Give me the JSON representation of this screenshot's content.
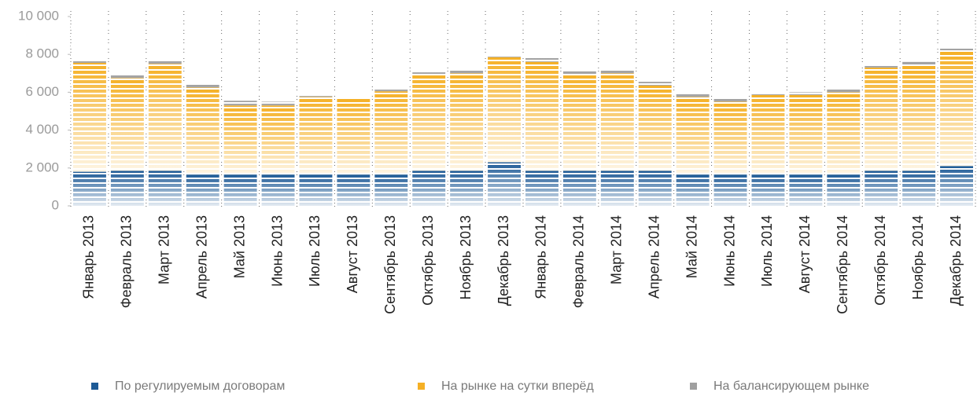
{
  "chart_data": {
    "type": "stacked_bar",
    "categories": [
      "Январь 2013",
      "Февраль 2013",
      "Март 2013",
      "Апрель 2013",
      "Май 2013",
      "Июнь 2013",
      "Июль 2013",
      "Август 2013",
      "Сентябрь 2013",
      "Октябрь 2013",
      "Ноябрь 2013",
      "Декабрь 2013",
      "Январь 2014",
      "Февраль 2014",
      "Март 2014",
      "Апрель 2014",
      "Май 2014",
      "Июнь 2014",
      "Июль 2014",
      "Август 2014",
      "Сентябрь 2014",
      "Октябрь 2014",
      "Ноябрь 2014",
      "Декабрь 2014"
    ],
    "series": [
      {
        "name": "По регулируемым договорам",
        "color": "#1d5a96",
        "values": [
          1800,
          1850,
          1850,
          1650,
          1650,
          1650,
          1650,
          1650,
          1650,
          1850,
          1850,
          2300,
          1850,
          1850,
          1850,
          1850,
          1650,
          1650,
          1650,
          1650,
          1650,
          1850,
          1850,
          2100
        ]
      },
      {
        "name": "На рынке на сутки вперёд",
        "color": "#f5b025",
        "values": [
          5750,
          4900,
          5650,
          4600,
          3650,
          3650,
          4100,
          4000,
          4400,
          5100,
          5150,
          5550,
          5750,
          5100,
          5150,
          4500,
          4100,
          3850,
          4200,
          4200,
          4350,
          5450,
          5550,
          6050
        ]
      },
      {
        "name": "На балансирующем рынке",
        "color": "#a0a0a0",
        "values": [
          150,
          150,
          150,
          150,
          250,
          200,
          50,
          50,
          150,
          100,
          150,
          100,
          200,
          150,
          150,
          200,
          200,
          150,
          100,
          150,
          150,
          150,
          200,
          150
        ]
      }
    ],
    "ylim": [
      0,
      10000
    ],
    "yticks": [
      0,
      {
        "value": 2000,
        "label": "2 000"
      },
      {
        "value": 4000,
        "label": "4 000"
      },
      {
        "value": 6000,
        "label": "6 000"
      },
      {
        "value": 8000,
        "label": "8 000"
      },
      {
        "value": 10000,
        "label": "10 000"
      }
    ]
  }
}
